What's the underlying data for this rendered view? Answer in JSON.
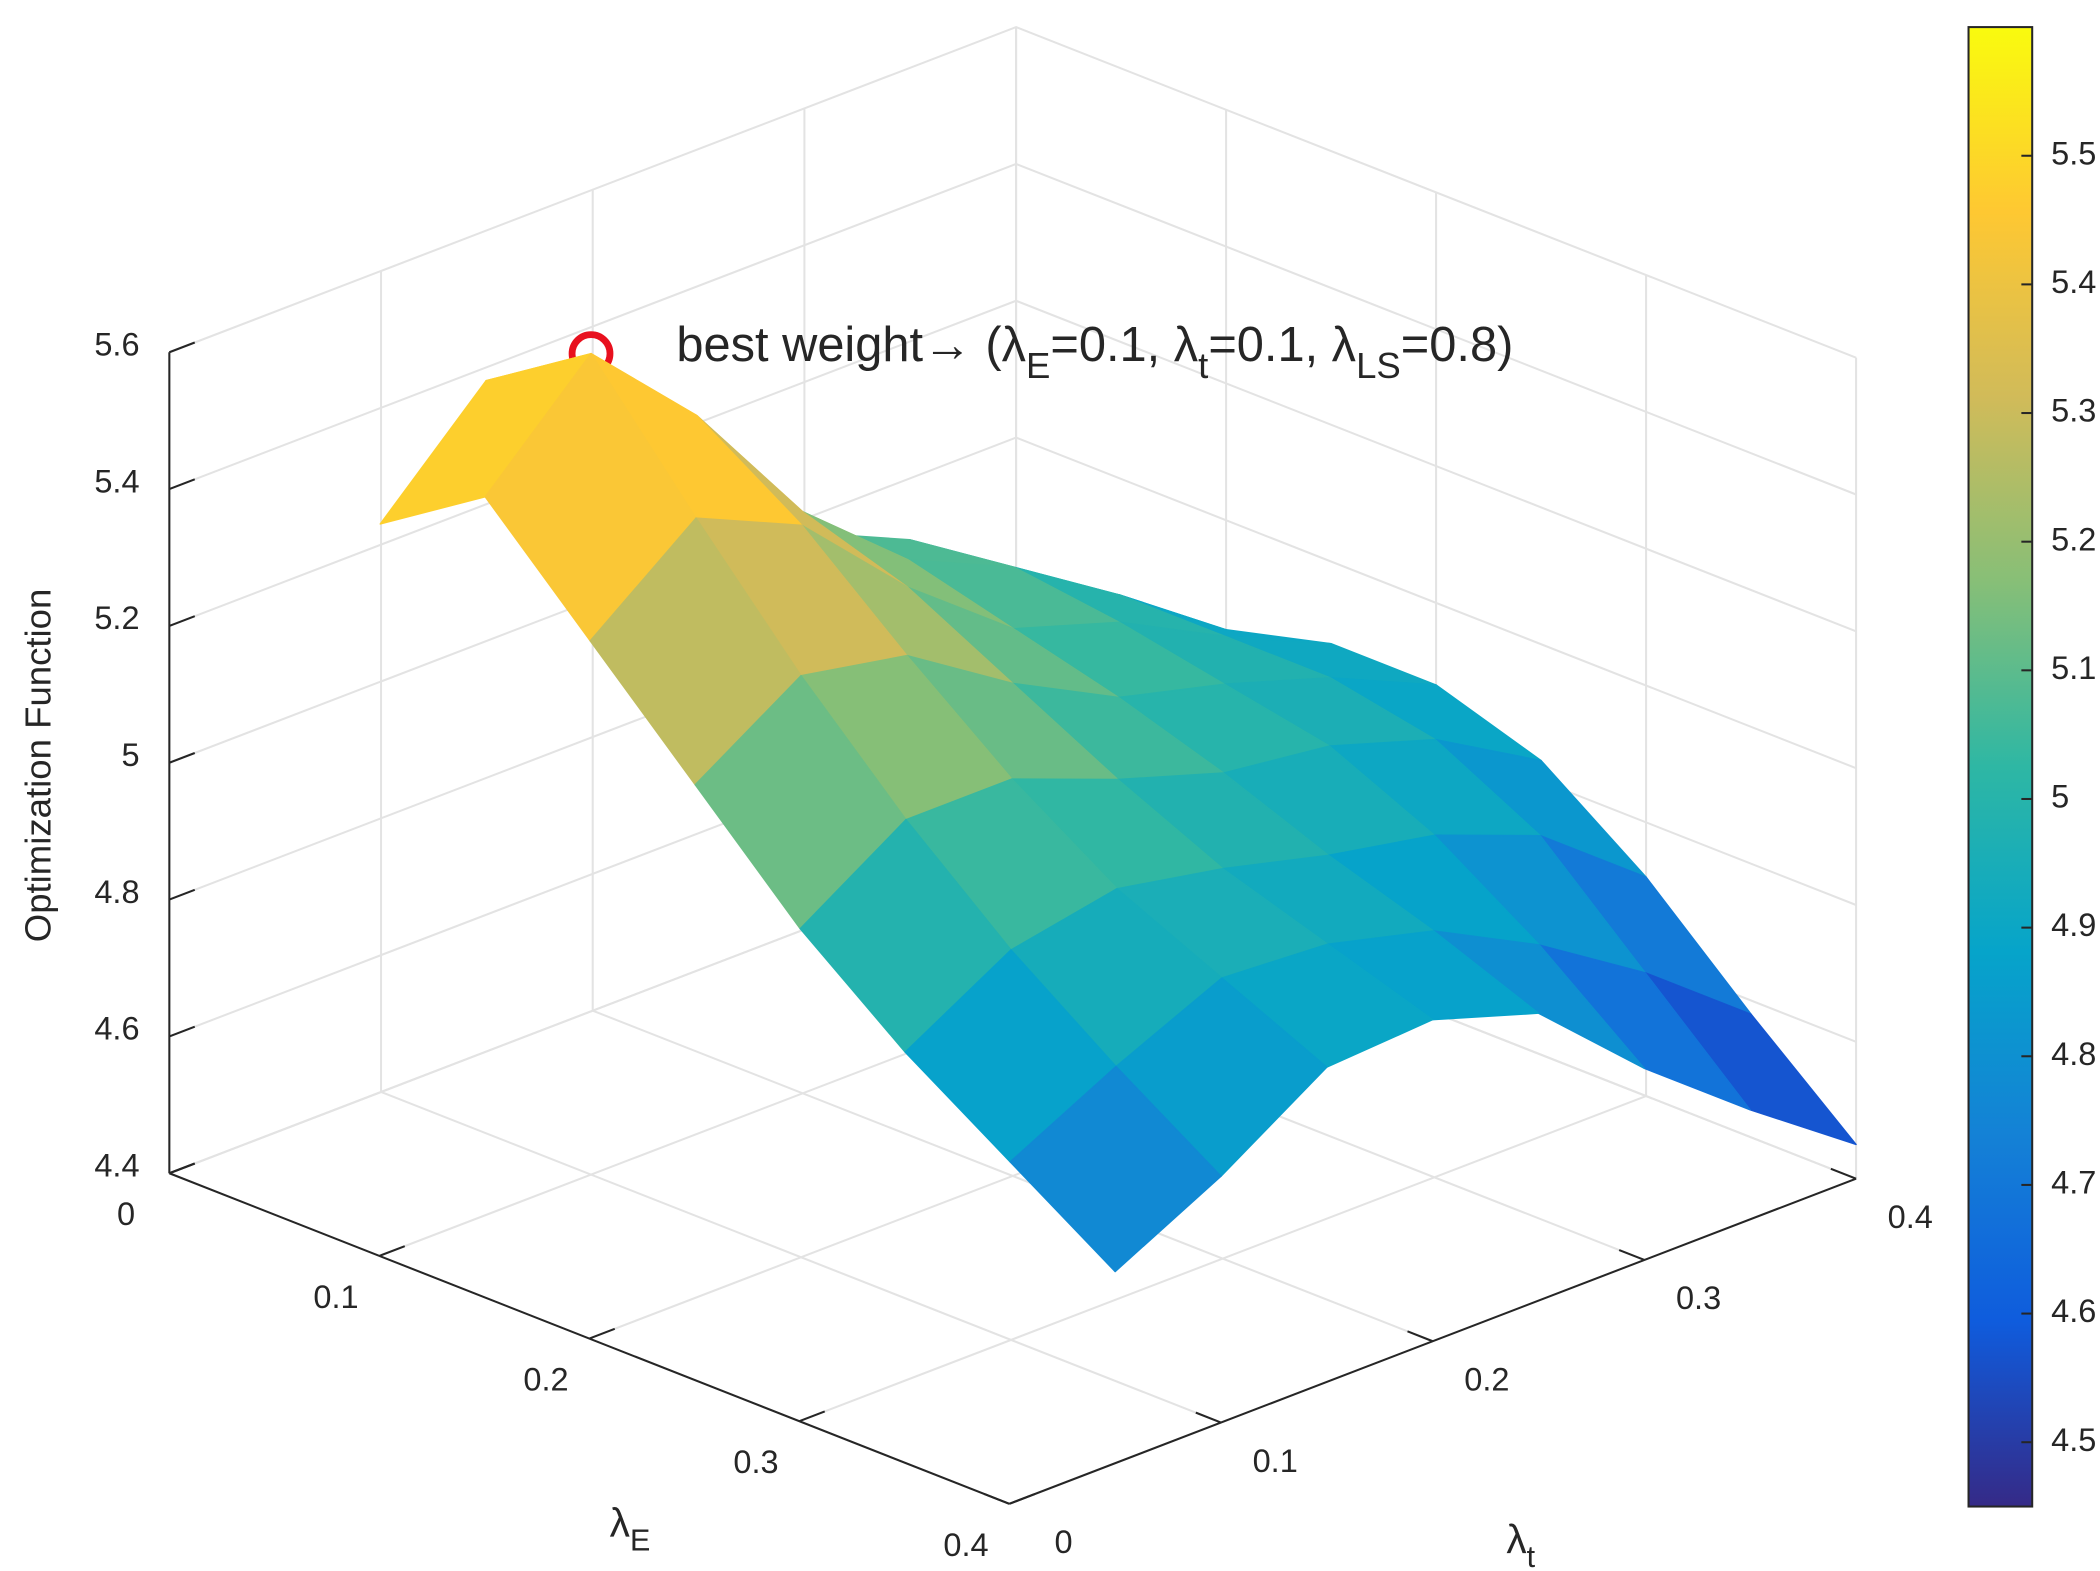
{
  "chart_data": {
    "type": "surface",
    "xlabel": [
      "λ",
      "E"
    ],
    "ylabel": [
      "λ",
      "t"
    ],
    "zlabel": "Optimization Function",
    "x": [
      0.05,
      0.1,
      0.15,
      0.2,
      0.25,
      0.3,
      0.35,
      0.4
    ],
    "y": [
      0.05,
      0.1,
      0.15,
      0.2,
      0.25,
      0.3,
      0.35,
      0.4
    ],
    "z": [
      [
        5.35,
        5.5,
        5.4,
        5.21,
        5.1,
        5.03,
        4.92,
        4.82
      ],
      [
        5.45,
        5.6,
        5.45,
        5.25,
        5.12,
        5.05,
        4.95,
        4.84
      ],
      [
        5.3,
        5.42,
        5.35,
        5.2,
        5.08,
        5.03,
        4.95,
        4.88
      ],
      [
        5.15,
        5.25,
        5.22,
        5.12,
        5.04,
        5.0,
        4.95,
        4.88
      ],
      [
        5.0,
        5.1,
        5.1,
        5.04,
        4.99,
        4.97,
        4.92,
        4.83
      ],
      [
        4.88,
        4.97,
        5.0,
        4.97,
        4.93,
        4.9,
        4.84,
        4.72
      ],
      [
        4.78,
        4.86,
        4.93,
        4.92,
        4.88,
        4.8,
        4.7,
        4.58
      ],
      [
        4.68,
        4.76,
        4.86,
        4.87,
        4.82,
        4.68,
        4.56,
        4.45
      ]
    ],
    "xlim": [
      0,
      0.4
    ],
    "xticks": [
      0,
      0.1,
      0.2,
      0.3,
      0.4
    ],
    "ylim": [
      0,
      0.4
    ],
    "yticks": [
      0,
      0.1,
      0.2,
      0.3,
      0.4
    ],
    "zlim": [
      4.4,
      5.6
    ],
    "zticks": [
      4.4,
      4.6,
      4.8,
      5,
      5.2,
      5.4,
      5.6
    ],
    "grid": true,
    "colormap": "parula",
    "clim": [
      4.45,
      5.6
    ],
    "colorbar_ticks": [
      4.5,
      4.6,
      4.7,
      4.8,
      4.9,
      5,
      5.1,
      5.2,
      5.3,
      5.4,
      5.5
    ],
    "annotation": {
      "parts": [
        "best weight→ (λ",
        "E",
        "=0.1, λ",
        "t",
        "=0.1, λ",
        "LS",
        "=0.8)"
      ],
      "x": 0.1,
      "y": 0.1,
      "z": 5.6,
      "color": "#e8101e"
    }
  }
}
